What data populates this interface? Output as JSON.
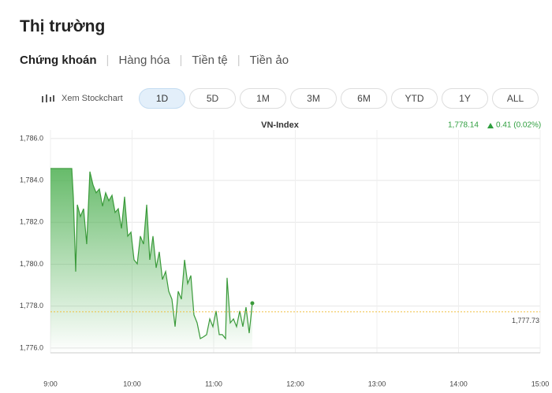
{
  "header": {
    "title": "Thị trường"
  },
  "tabs": [
    "Chứng khoán",
    "Hàng hóa",
    "Tiền tệ",
    "Tiền ảo"
  ],
  "toolbar": {
    "stockchart": "Xem Stockchart",
    "ranges": [
      "1D",
      "5D",
      "1M",
      "3M",
      "6M",
      "YTD",
      "1Y",
      "ALL"
    ],
    "selected": "1D"
  },
  "chart_data": {
    "type": "line",
    "header": {
      "index": "VN-Index",
      "price": "1,778.14",
      "change": "0.41 (0.02%)"
    },
    "x": [
      9.0,
      9.261,
      9.28,
      9.309,
      9.329,
      9.367,
      9.406,
      9.444,
      9.483,
      9.522,
      9.56,
      9.599,
      9.638,
      9.676,
      9.715,
      9.754,
      9.792,
      9.831,
      9.87,
      9.908,
      9.947,
      9.986,
      10.024,
      10.063,
      10.101,
      10.14,
      10.179,
      10.217,
      10.256,
      10.295,
      10.333,
      10.372,
      10.411,
      10.449,
      10.488,
      10.527,
      10.565,
      10.604,
      10.643,
      10.681,
      10.72,
      10.758,
      10.797,
      10.836,
      10.874,
      10.913,
      10.952,
      10.99,
      11.029,
      11.068,
      11.106,
      11.145,
      11.164,
      11.203,
      11.242,
      11.28,
      11.319,
      11.357,
      11.396,
      11.435,
      11.473
    ],
    "series": [
      {
        "name": "VN-Index",
        "color": "#3a9a3a",
        "values": [
          1784.57,
          1784.57,
          1783.22,
          1779.65,
          1782.84,
          1782.28,
          1782.65,
          1780.96,
          1784.42,
          1783.78,
          1783.41,
          1783.59,
          1782.77,
          1783.41,
          1783.03,
          1783.29,
          1782.47,
          1782.65,
          1781.71,
          1783.22,
          1781.34,
          1781.53,
          1780.21,
          1780.02,
          1781.34,
          1780.96,
          1782.84,
          1780.21,
          1781.34,
          1779.83,
          1780.59,
          1779.27,
          1779.65,
          1778.71,
          1778.33,
          1777.02,
          1778.71,
          1778.33,
          1780.21,
          1779.08,
          1779.46,
          1777.58,
          1777.2,
          1776.45,
          1776.53,
          1776.64,
          1777.39,
          1777.02,
          1777.77,
          1776.64,
          1776.64,
          1776.45,
          1779.35,
          1777.2,
          1777.39,
          1777.02,
          1777.77,
          1777.02,
          1777.95,
          1776.71,
          1778.14
        ]
      }
    ],
    "reference_line": {
      "value": 1777.73,
      "label": "1,777.73",
      "color": "#f0c040"
    },
    "xlim": [
      9,
      15
    ],
    "xticks": [
      {
        "value": 9,
        "label": "9:00"
      },
      {
        "value": 10,
        "label": "10:00"
      },
      {
        "value": 11,
        "label": "11:00"
      },
      {
        "value": 12,
        "label": "12:00"
      },
      {
        "value": 13,
        "label": "13:00"
      },
      {
        "value": 14,
        "label": "14:00"
      },
      {
        "value": 15,
        "label": "15:00"
      }
    ],
    "ylim": [
      1775.77,
      1786.41
    ],
    "yticks": [
      {
        "value": 1776,
        "label": "1,776.0"
      },
      {
        "value": 1778,
        "label": "1,778.0"
      },
      {
        "value": 1780,
        "label": "1,780.0"
      },
      {
        "value": 1782,
        "label": "1,782.0"
      },
      {
        "value": 1784,
        "label": "1,784.0"
      },
      {
        "value": 1786,
        "label": "1,786.0"
      }
    ],
    "grid": true
  }
}
